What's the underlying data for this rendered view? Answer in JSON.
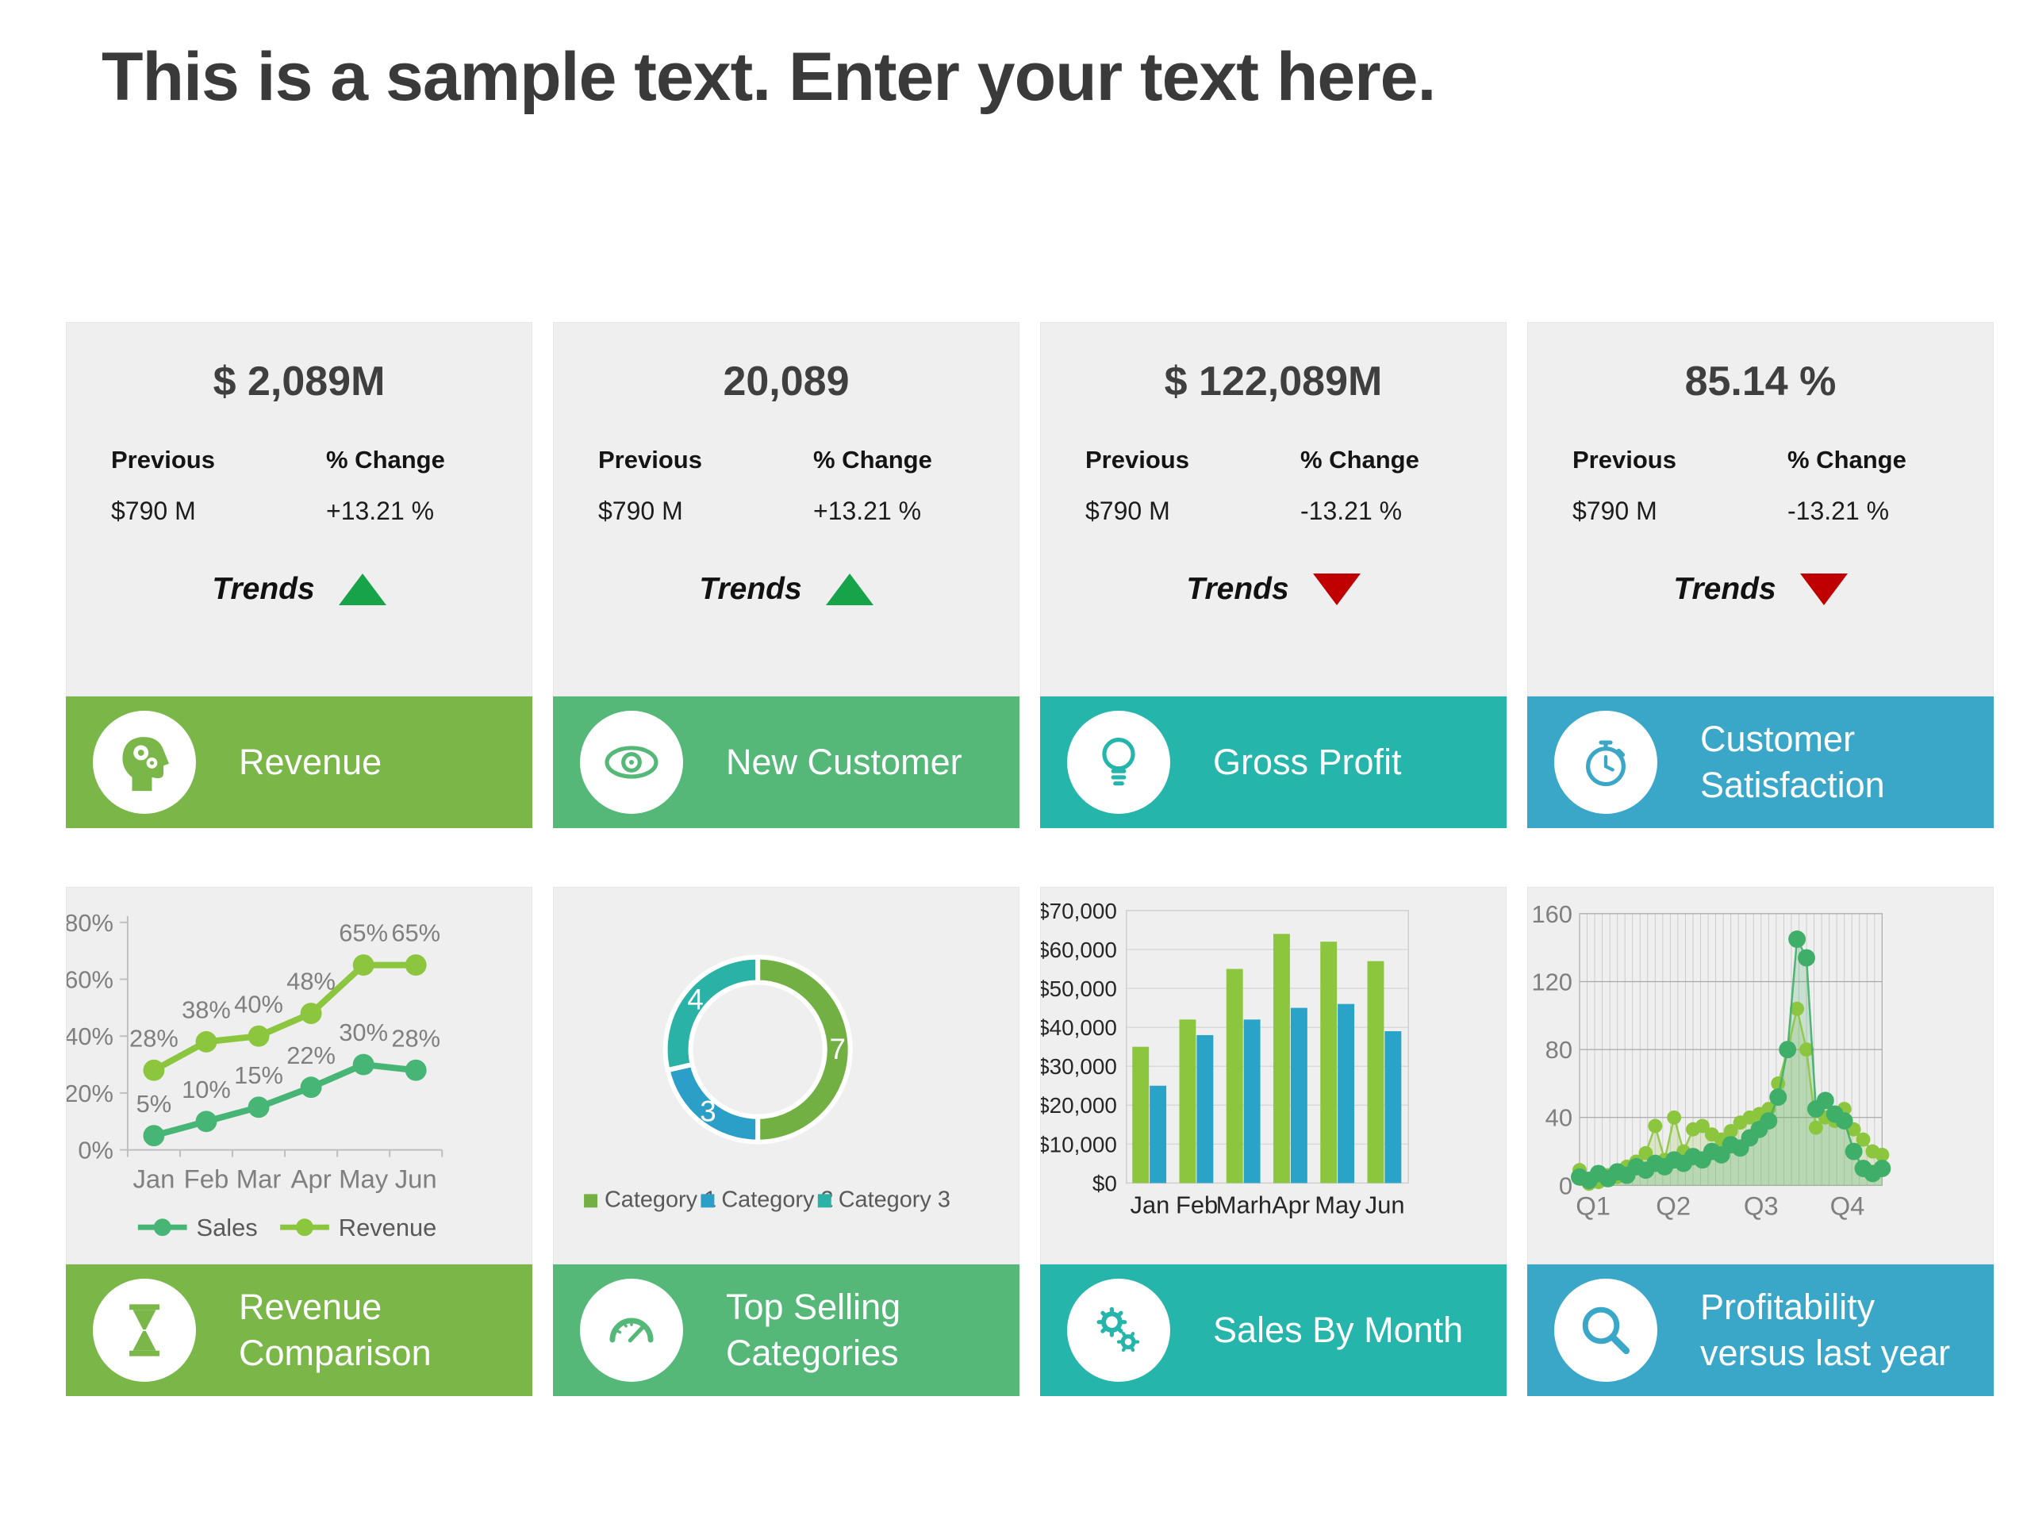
{
  "title": "This is a sample text. Enter your text here.",
  "kpi_cards": [
    {
      "value": "$ 2,089M",
      "previous_label": "Previous",
      "previous_value": "$790 M",
      "change_label": "% Change",
      "change_value": "+13.21 %",
      "trends_label": "Trends",
      "trend_direction": "up",
      "trend_color": "#16a34a",
      "label": "Revenue",
      "footer_color": "#7ab648",
      "icon": "head-gears-icon"
    },
    {
      "value": "20,089",
      "previous_label": "Previous",
      "previous_value": "$790 M",
      "change_label": "% Change",
      "change_value": "+13.21 %",
      "trends_label": "Trends",
      "trend_direction": "up",
      "trend_color": "#16a34a",
      "label": "New Customer",
      "footer_color": "#55b878",
      "icon": "eye-icon"
    },
    {
      "value": "$ 122,089M",
      "previous_label": "Previous",
      "previous_value": "$790 M",
      "change_label": "% Change",
      "change_value": "-13.21 %",
      "trends_label": "Trends",
      "trend_direction": "down",
      "trend_color": "#c00000",
      "label": "Gross Profit",
      "footer_color": "#26b5aa",
      "icon": "lightbulb-icon"
    },
    {
      "value": "85.14 %",
      "previous_label": "Previous",
      "previous_value": "$790 M",
      "change_label": "% Change",
      "change_value": "-13.21 %",
      "trends_label": "Trends",
      "trend_direction": "down",
      "trend_color": "#c00000",
      "label": "Customer Satisfaction",
      "footer_color": "#3aa7c9",
      "icon": "stopwatch-icon"
    }
  ],
  "chart_cards": [
    {
      "label": "Revenue Comparison",
      "footer_color": "#7ab648",
      "icon": "hourglass-icon"
    },
    {
      "label": "Top Selling Categories",
      "footer_color": "#55b878",
      "icon": "gauge-icon"
    },
    {
      "label": "Sales By Month",
      "footer_color": "#26b5aa",
      "icon": "gears-icon"
    },
    {
      "label": "Profitability versus last year",
      "footer_color": "#3aa7c9",
      "icon": "magnifier-icon"
    }
  ],
  "chart_data": [
    {
      "type": "line",
      "title": "Revenue Comparison",
      "categories": [
        "Jan",
        "Feb",
        "Mar",
        "Apr",
        "May",
        "Jun"
      ],
      "series": [
        {
          "name": "Sales",
          "color": "#47b575",
          "values": [
            5,
            10,
            15,
            22,
            30,
            28
          ],
          "labels": [
            "5%",
            "10%",
            "15%",
            "22%",
            "30%",
            "28%"
          ]
        },
        {
          "name": "Revenue",
          "color": "#8cc63f",
          "values": [
            28,
            38,
            40,
            48,
            65,
            65
          ],
          "labels": [
            "28%",
            "38%",
            "40%",
            "48%",
            "65%",
            "65%"
          ]
        }
      ],
      "xlabel": "",
      "ylabel": "",
      "ylim": [
        0,
        80
      ],
      "yticks": [
        "0%",
        "20%",
        "40%",
        "60%",
        "80%"
      ],
      "grid": false,
      "legend_position": "bottom"
    },
    {
      "type": "pie",
      "subtype": "donut",
      "title": "Top Selling Categories",
      "categories": [
        "Category 1",
        "Category 2",
        "Category 3"
      ],
      "values": [
        7,
        3,
        4
      ],
      "colors": [
        "#72b043",
        "#2b9fc7",
        "#29b2a5"
      ],
      "data_labels": [
        "7",
        "3",
        "4"
      ],
      "legend_position": "bottom"
    },
    {
      "type": "bar",
      "title": "Sales By Month",
      "categories": [
        "Jan",
        "Feb",
        "Marh",
        "Apr",
        "May",
        "Jun"
      ],
      "series": [
        {
          "name": "series-green",
          "color": "#8cc63f",
          "values": [
            35000,
            42000,
            55000,
            64000,
            62000,
            57000
          ]
        },
        {
          "name": "series-blue",
          "color": "#29a3c8",
          "values": [
            25000,
            38000,
            42000,
            45000,
            46000,
            39000
          ]
        }
      ],
      "ylim": [
        0,
        70000
      ],
      "yticks": [
        "$0",
        "$10,000",
        "$20,000",
        "$30,000",
        "$40,000",
        "$50,000",
        "$60,000",
        "$70,000"
      ],
      "grid": true,
      "legend_position": "none"
    },
    {
      "type": "area",
      "title": "Profitability versus last year",
      "xticks": [
        "Q1",
        "Q2",
        "Q3",
        "Q4"
      ],
      "ylim": [
        0,
        160
      ],
      "yticks": [
        "0",
        "40",
        "80",
        "120",
        "160"
      ],
      "grid": true,
      "series": [
        {
          "name": "light-green",
          "color": "#8cc63f",
          "values": [
            9,
            1,
            2,
            6,
            5,
            11,
            14,
            19,
            35,
            15,
            40,
            20,
            33,
            35,
            30,
            27,
            32,
            37,
            40,
            42,
            45,
            60,
            80,
            104,
            80,
            34,
            40,
            38,
            45,
            33,
            27,
            20,
            18
          ]
        },
        {
          "name": "dark-green",
          "color": "#3fae68",
          "values": [
            5,
            3,
            7,
            4,
            8,
            6,
            11,
            9,
            13,
            11,
            15,
            13,
            17,
            15,
            20,
            18,
            24,
            22,
            28,
            33,
            38,
            52,
            80,
            145,
            134,
            45,
            50,
            42,
            38,
            20,
            10,
            7,
            10
          ]
        }
      ],
      "legend_position": "none"
    }
  ]
}
